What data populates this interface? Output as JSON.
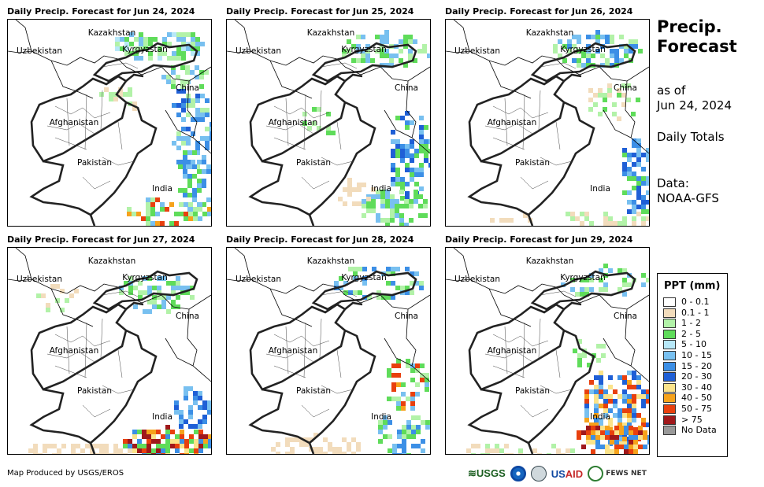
{
  "panels": [
    {
      "title": "Daily Precip. Forecast for Jun 24, 2024"
    },
    {
      "title": "Daily Precip. Forecast for Jun 25, 2024"
    },
    {
      "title": "Daily Precip. Forecast for Jun 26, 2024"
    },
    {
      "title": "Daily Precip. Forecast for Jun 27, 2024"
    },
    {
      "title": "Daily Precip. Forecast for Jun 28, 2024"
    },
    {
      "title": "Daily Precip. Forecast for Jun 29, 2024"
    }
  ],
  "map_labels": {
    "kazakhstan": "Kazakhstan",
    "uzbekistan": "Uzbekistan",
    "kyrgyzstan": "Kyrgyzstan",
    "china": "China",
    "afghanistan": "Afghanistan",
    "pakistan": "Pakistan",
    "india": "India"
  },
  "sidebar": {
    "title_line1": "Precip.",
    "title_line2": "Forecast",
    "asof_line1": "as of",
    "asof_line2": "Jun 24, 2024",
    "totals": "Daily Totals",
    "data_line1": "Data:",
    "data_line2": "NOAA-GFS"
  },
  "legend": {
    "title": "PPT (mm)",
    "items": [
      {
        "label": "0 - 0.1",
        "color": "#ffffff"
      },
      {
        "label": "0.1 - 1",
        "color": "#f2dcbc"
      },
      {
        "label": "1 - 2",
        "color": "#b2f2a8"
      },
      {
        "label": "2 - 5",
        "color": "#5fdc5a"
      },
      {
        "label": "5 - 10",
        "color": "#b7e8f8"
      },
      {
        "label": "10 - 15",
        "color": "#78c0f0"
      },
      {
        "label": "15 - 20",
        "color": "#3c8fe6"
      },
      {
        "label": "20 - 30",
        "color": "#1f5fd6"
      },
      {
        "label": "30 - 40",
        "color": "#fbe38a"
      },
      {
        "label": "40 - 50",
        "color": "#f6a21b"
      },
      {
        "label": "50 - 75",
        "color": "#e8400e"
      },
      {
        "label": "> 75",
        "color": "#a0181b"
      },
      {
        "label": "No Data",
        "color": "#999999"
      }
    ]
  },
  "footer": {
    "credit": "Map Produced by USGS/EROS",
    "logos": {
      "usgs": "≋USGS",
      "usaid_us": "US",
      "usaid_aid": "AID",
      "fews": "FEWS NET"
    }
  }
}
